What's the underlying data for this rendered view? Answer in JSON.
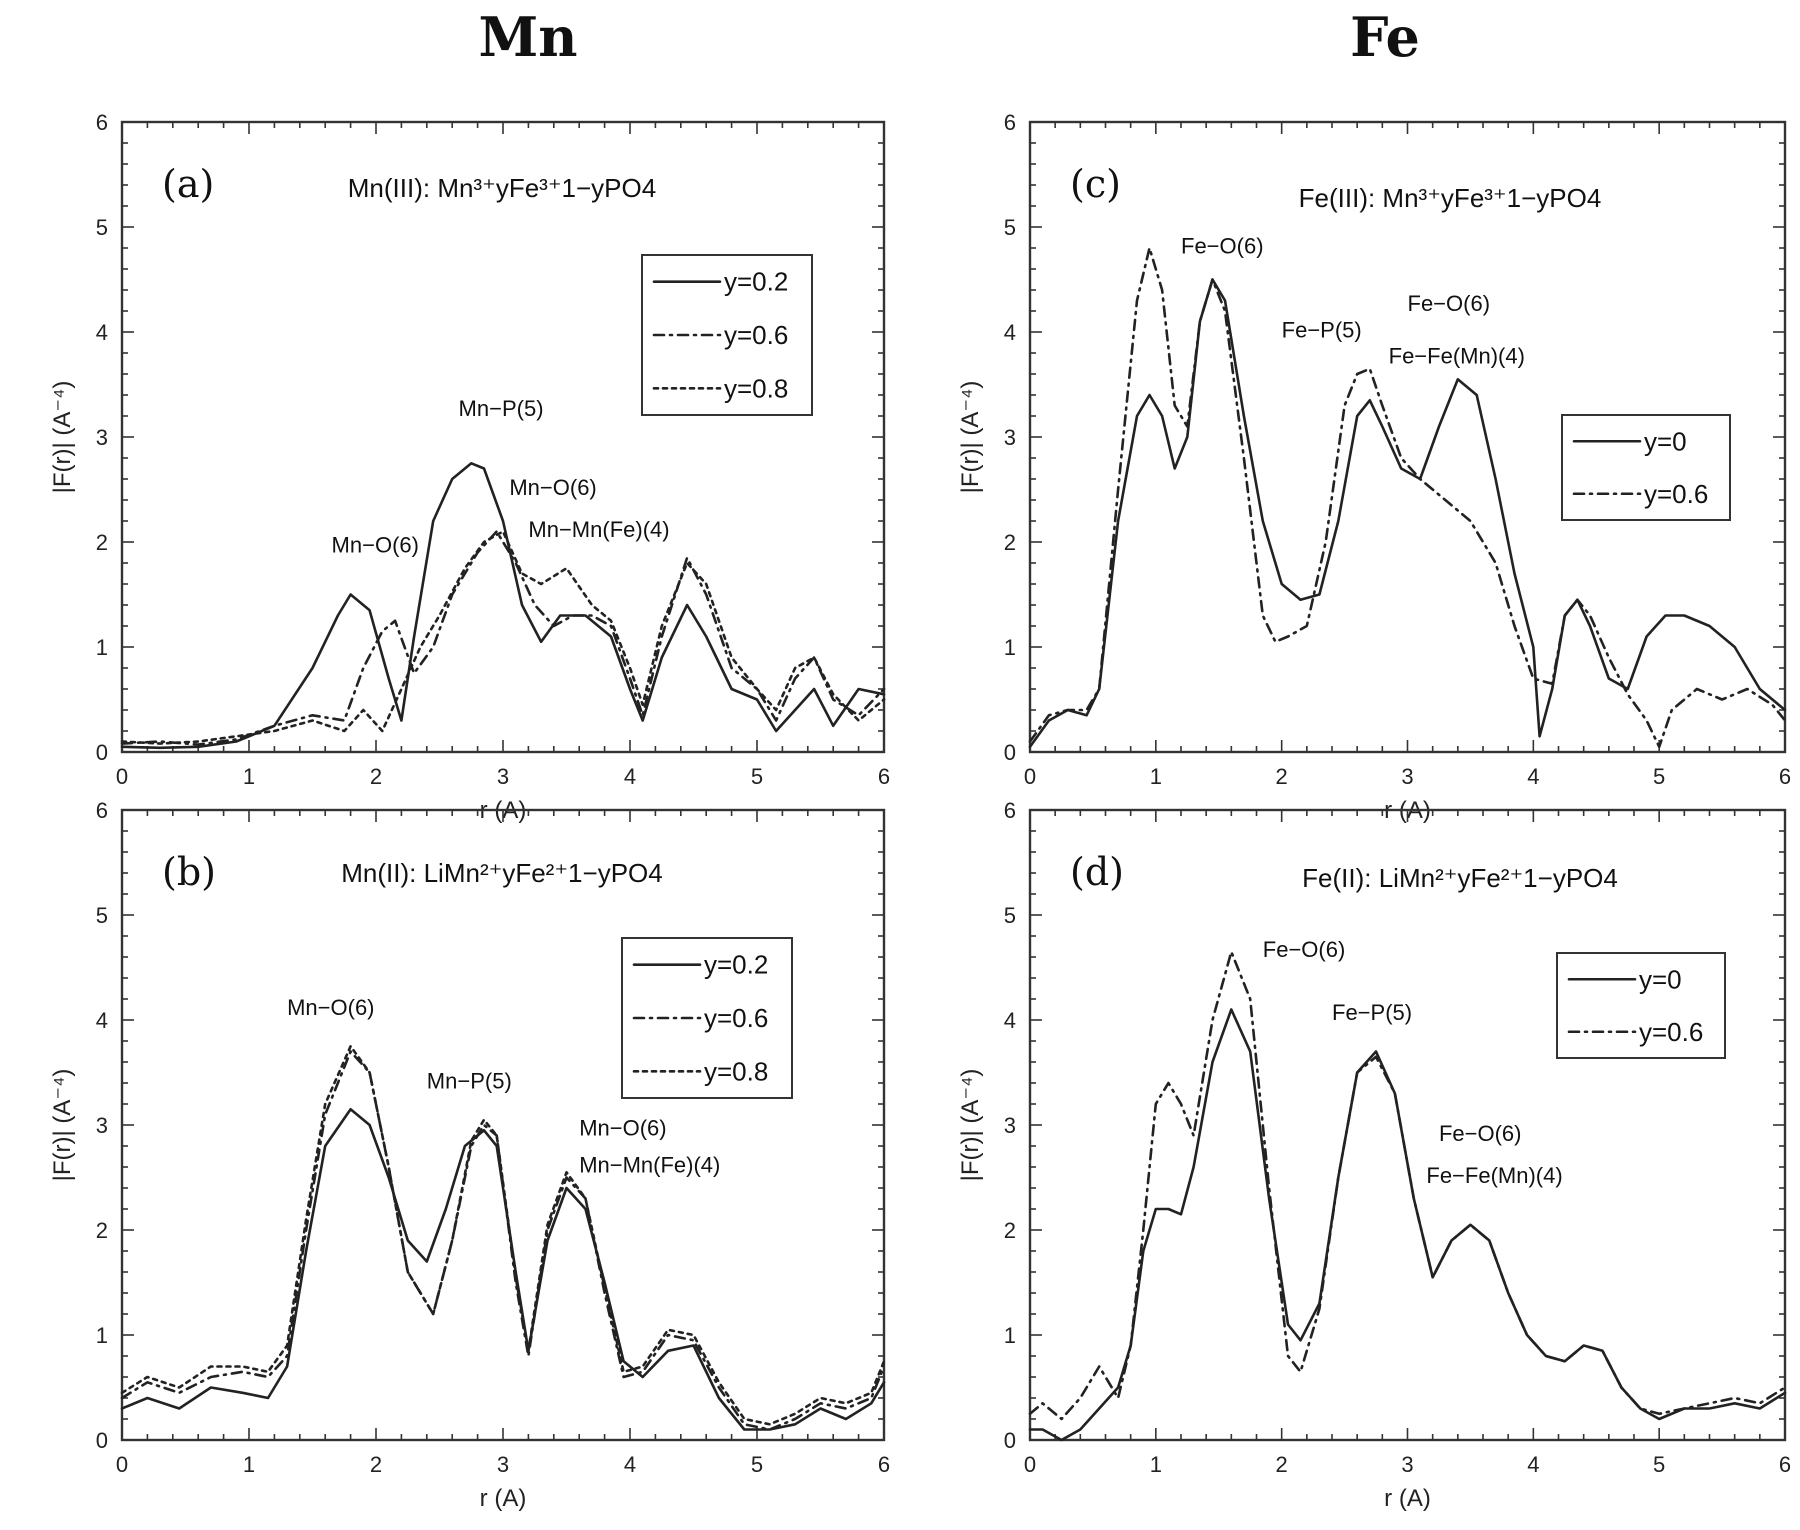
{
  "headers": {
    "left": "Mn",
    "right": "Fe"
  },
  "chart_data": [
    {
      "type": "line",
      "panel_label": "(a)",
      "title": "Mn(III): Mn³⁺yFe³⁺1−yPO4",
      "xlabel": "r (A)",
      "ylabel": "|F(r)| (A⁻⁴)",
      "xlim": [
        0,
        6
      ],
      "ylim": [
        0,
        6
      ],
      "xticks": [
        "0",
        "1",
        "2",
        "3",
        "4",
        "5",
        "6"
      ],
      "yticks": [
        "0",
        "1",
        "2",
        "3",
        "4",
        "5",
        "6"
      ],
      "legend": "top-right",
      "series": [
        {
          "name": "y=0.2",
          "dash": "solid",
          "x": [
            0,
            0.3,
            0.6,
            0.9,
            1.2,
            1.5,
            1.7,
            1.8,
            1.95,
            2.1,
            2.2,
            2.3,
            2.45,
            2.6,
            2.75,
            2.85,
            3.0,
            3.15,
            3.3,
            3.45,
            3.65,
            3.85,
            4.0,
            4.1,
            4.25,
            4.45,
            4.6,
            4.8,
            5.0,
            5.15,
            5.3,
            5.45,
            5.6,
            5.8,
            6.0
          ],
          "y": [
            0.05,
            0.04,
            0.05,
            0.1,
            0.25,
            0.8,
            1.3,
            1.5,
            1.35,
            0.7,
            0.3,
            1.1,
            2.2,
            2.6,
            2.75,
            2.7,
            2.2,
            1.4,
            1.05,
            1.3,
            1.3,
            1.1,
            0.6,
            0.3,
            0.9,
            1.4,
            1.1,
            0.6,
            0.5,
            0.2,
            0.4,
            0.6,
            0.25,
            0.6,
            0.55
          ]
        },
        {
          "name": "y=0.6",
          "dash": "10,6,2,6",
          "x": [
            0,
            0.3,
            0.6,
            0.9,
            1.2,
            1.5,
            1.75,
            1.9,
            2.05,
            2.15,
            2.3,
            2.45,
            2.6,
            2.8,
            2.95,
            3.1,
            3.25,
            3.4,
            3.55,
            3.7,
            3.85,
            4.0,
            4.1,
            4.25,
            4.45,
            4.6,
            4.8,
            5.0,
            5.15,
            5.3,
            5.45,
            5.6,
            5.8,
            6.0
          ],
          "y": [
            0.08,
            0.1,
            0.07,
            0.12,
            0.25,
            0.35,
            0.3,
            0.8,
            1.15,
            1.25,
            0.75,
            1.0,
            1.5,
            1.9,
            2.1,
            1.8,
            1.4,
            1.2,
            1.3,
            1.3,
            1.2,
            0.7,
            0.35,
            1.1,
            1.85,
            1.5,
            0.8,
            0.6,
            0.3,
            0.7,
            0.9,
            0.5,
            0.35,
            0.6
          ]
        },
        {
          "name": "y=0.8",
          "dash": "4,5",
          "x": [
            0,
            0.3,
            0.6,
            0.9,
            1.2,
            1.5,
            1.75,
            1.9,
            2.05,
            2.2,
            2.35,
            2.5,
            2.7,
            2.85,
            3.0,
            3.15,
            3.3,
            3.5,
            3.7,
            3.85,
            4.0,
            4.1,
            4.25,
            4.45,
            4.6,
            4.8,
            5.0,
            5.15,
            5.3,
            5.45,
            5.6,
            5.8,
            6.0
          ],
          "y": [
            0.1,
            0.08,
            0.1,
            0.15,
            0.2,
            0.3,
            0.2,
            0.4,
            0.2,
            0.6,
            1.0,
            1.3,
            1.75,
            2.0,
            2.1,
            1.7,
            1.6,
            1.75,
            1.4,
            1.25,
            0.8,
            0.45,
            1.2,
            1.8,
            1.6,
            0.9,
            0.6,
            0.4,
            0.8,
            0.9,
            0.55,
            0.3,
            0.5
          ]
        }
      ],
      "annotations": [
        {
          "text": "Mn−O(6)",
          "x": 1.65,
          "y": 1.9
        },
        {
          "text": "Mn−P(5)",
          "x": 2.65,
          "y": 3.2
        },
        {
          "text": "Mn−O(6)",
          "x": 3.05,
          "y": 2.45
        },
        {
          "text": "Mn−Mn(Fe)(4)",
          "x": 3.2,
          "y": 2.05
        }
      ]
    },
    {
      "type": "line",
      "panel_label": "(b)",
      "title": "Mn(II): LiMn²⁺yFe²⁺1−yPO4",
      "xlabel": "r (A)",
      "ylabel": "|F(r)| (A⁻⁴)",
      "xlim": [
        0,
        6
      ],
      "ylim": [
        0,
        6
      ],
      "xticks": [
        "0",
        "1",
        "2",
        "3",
        "4",
        "5",
        "6"
      ],
      "yticks": [
        "0",
        "1",
        "2",
        "3",
        "4",
        "5",
        "6"
      ],
      "legend": "top-right",
      "series": [
        {
          "name": "y=0.2",
          "dash": "solid",
          "x": [
            0,
            0.2,
            0.45,
            0.7,
            0.95,
            1.15,
            1.3,
            1.45,
            1.6,
            1.8,
            1.95,
            2.1,
            2.25,
            2.4,
            2.55,
            2.7,
            2.85,
            2.95,
            3.1,
            3.2,
            3.35,
            3.5,
            3.65,
            3.8,
            3.95,
            4.1,
            4.3,
            4.5,
            4.7,
            4.9,
            5.1,
            5.3,
            5.5,
            5.7,
            5.9,
            6.0
          ],
          "y": [
            0.3,
            0.4,
            0.3,
            0.5,
            0.45,
            0.4,
            0.7,
            1.8,
            2.8,
            3.15,
            3.0,
            2.5,
            1.9,
            1.7,
            2.2,
            2.8,
            2.95,
            2.8,
            1.6,
            0.85,
            1.9,
            2.4,
            2.2,
            1.5,
            0.75,
            0.6,
            0.85,
            0.9,
            0.4,
            0.1,
            0.1,
            0.15,
            0.3,
            0.2,
            0.35,
            0.55
          ]
        },
        {
          "name": "y=0.6",
          "dash": "10,6,2,6",
          "x": [
            0,
            0.2,
            0.45,
            0.7,
            0.95,
            1.15,
            1.3,
            1.45,
            1.6,
            1.8,
            1.95,
            2.1,
            2.25,
            2.45,
            2.6,
            2.75,
            2.85,
            2.95,
            3.1,
            3.2,
            3.35,
            3.5,
            3.65,
            3.8,
            3.95,
            4.1,
            4.3,
            4.5,
            4.7,
            4.9,
            5.1,
            5.3,
            5.5,
            5.7,
            5.9,
            6.0
          ],
          "y": [
            0.4,
            0.55,
            0.45,
            0.6,
            0.65,
            0.6,
            0.8,
            2.0,
            3.1,
            3.7,
            3.5,
            2.6,
            1.6,
            1.2,
            1.9,
            2.8,
            3.0,
            2.9,
            1.5,
            0.8,
            2.0,
            2.5,
            2.3,
            1.4,
            0.6,
            0.65,
            1.0,
            0.95,
            0.5,
            0.15,
            0.1,
            0.2,
            0.35,
            0.3,
            0.4,
            0.7
          ]
        },
        {
          "name": "y=0.8",
          "dash": "4,5",
          "x": [
            0,
            0.2,
            0.45,
            0.7,
            0.95,
            1.15,
            1.3,
            1.45,
            1.6,
            1.8,
            1.95,
            2.1,
            2.25,
            2.45,
            2.6,
            2.75,
            2.85,
            2.95,
            3.1,
            3.2,
            3.35,
            3.5,
            3.65,
            3.8,
            3.95,
            4.1,
            4.3,
            4.5,
            4.7,
            4.9,
            5.1,
            5.3,
            5.5,
            5.7,
            5.9,
            6.0
          ],
          "y": [
            0.45,
            0.6,
            0.5,
            0.7,
            0.7,
            0.65,
            0.9,
            2.1,
            3.2,
            3.75,
            3.5,
            2.6,
            1.6,
            1.2,
            1.9,
            2.85,
            3.05,
            2.9,
            1.55,
            0.85,
            2.05,
            2.55,
            2.3,
            1.45,
            0.65,
            0.7,
            1.05,
            1.0,
            0.55,
            0.2,
            0.15,
            0.25,
            0.4,
            0.35,
            0.45,
            0.75
          ]
        }
      ],
      "annotations": [
        {
          "text": "Mn−O(6)",
          "x": 1.3,
          "y": 4.05
        },
        {
          "text": "Mn−P(5)",
          "x": 2.4,
          "y": 3.35
        },
        {
          "text": "Mn−O(6)",
          "x": 3.6,
          "y": 2.9
        },
        {
          "text": "Mn−Mn(Fe)(4)",
          "x": 3.6,
          "y": 2.55
        }
      ]
    },
    {
      "type": "line",
      "panel_label": "(c)",
      "title": "Fe(III): Mn³⁺yFe³⁺1−yPO4",
      "xlabel": "r (A)",
      "ylabel": "|F(r)| (A⁻⁴)",
      "xlim": [
        0,
        6
      ],
      "ylim": [
        0,
        6
      ],
      "xticks": [
        "0",
        "1",
        "2",
        "3",
        "4",
        "5",
        "6"
      ],
      "yticks": [
        "0",
        "1",
        "2",
        "3",
        "4",
        "5",
        "6"
      ],
      "legend": "middle-right",
      "series": [
        {
          "name": "y=0",
          "dash": "solid",
          "x": [
            0,
            0.15,
            0.3,
            0.45,
            0.55,
            0.7,
            0.85,
            0.95,
            1.05,
            1.15,
            1.25,
            1.35,
            1.45,
            1.55,
            1.7,
            1.85,
            2.0,
            2.15,
            2.3,
            2.45,
            2.6,
            2.7,
            2.8,
            2.95,
            3.1,
            3.25,
            3.4,
            3.55,
            3.7,
            3.85,
            4.0,
            4.05,
            4.15,
            4.25,
            4.35,
            4.45,
            4.6,
            4.75,
            4.9,
            5.05,
            5.2,
            5.4,
            5.6,
            5.8,
            6.0
          ],
          "y": [
            0.05,
            0.3,
            0.4,
            0.35,
            0.6,
            2.2,
            3.2,
            3.4,
            3.2,
            2.7,
            3.0,
            4.1,
            4.5,
            4.3,
            3.2,
            2.2,
            1.6,
            1.45,
            1.5,
            2.2,
            3.2,
            3.35,
            3.1,
            2.7,
            2.6,
            3.1,
            3.55,
            3.4,
            2.6,
            1.7,
            1.0,
            0.15,
            0.6,
            1.3,
            1.45,
            1.2,
            0.7,
            0.6,
            1.1,
            1.3,
            1.3,
            1.2,
            1.0,
            0.6,
            0.4
          ]
        },
        {
          "name": "y=0.6",
          "dash": "10,6,2,6",
          "x": [
            0,
            0.15,
            0.3,
            0.45,
            0.55,
            0.7,
            0.85,
            0.95,
            1.05,
            1.15,
            1.25,
            1.35,
            1.45,
            1.55,
            1.7,
            1.85,
            1.95,
            2.05,
            2.2,
            2.35,
            2.5,
            2.6,
            2.7,
            2.8,
            2.95,
            3.1,
            3.3,
            3.5,
            3.7,
            3.85,
            4.0,
            4.15,
            4.25,
            4.35,
            4.45,
            4.6,
            4.75,
            4.9,
            5.0,
            5.1,
            5.3,
            5.5,
            5.7,
            5.9,
            6.0
          ],
          "y": [
            0.1,
            0.35,
            0.4,
            0.4,
            0.6,
            2.5,
            4.3,
            4.8,
            4.4,
            3.3,
            3.1,
            4.1,
            4.5,
            4.2,
            2.8,
            1.3,
            1.05,
            1.1,
            1.2,
            2.0,
            3.3,
            3.6,
            3.65,
            3.3,
            2.8,
            2.6,
            2.4,
            2.2,
            1.8,
            1.2,
            0.7,
            0.65,
            1.3,
            1.45,
            1.3,
            0.9,
            0.55,
            0.3,
            0.05,
            0.4,
            0.6,
            0.5,
            0.6,
            0.45,
            0.3
          ]
        }
      ],
      "annotations": [
        {
          "text": "Fe−O(6)",
          "x": 1.2,
          "y": 4.75
        },
        {
          "text": "Fe−P(5)",
          "x": 2.0,
          "y": 3.95
        },
        {
          "text": "Fe−O(6)",
          "x": 3.0,
          "y": 4.2
        },
        {
          "text": "Fe−Fe(Mn)(4)",
          "x": 2.85,
          "y": 3.7
        }
      ]
    },
    {
      "type": "line",
      "panel_label": "(d)",
      "title": "Fe(II): LiMn²⁺yFe²⁺1−yPO4",
      "xlabel": "r (A)",
      "ylabel": "|F(r)| (A⁻⁴)",
      "xlim": [
        0,
        6
      ],
      "ylim": [
        0,
        6
      ],
      "xticks": [
        "0",
        "1",
        "2",
        "3",
        "4",
        "5",
        "6"
      ],
      "yticks": [
        "0",
        "1",
        "2",
        "3",
        "4",
        "5",
        "6"
      ],
      "legend": "top-right",
      "series": [
        {
          "name": "y=0",
          "dash": "solid",
          "x": [
            0,
            0.1,
            0.25,
            0.4,
            0.55,
            0.7,
            0.8,
            0.9,
            1.0,
            1.1,
            1.2,
            1.3,
            1.45,
            1.6,
            1.75,
            1.9,
            2.05,
            2.15,
            2.3,
            2.45,
            2.6,
            2.75,
            2.9,
            3.05,
            3.2,
            3.35,
            3.5,
            3.65,
            3.8,
            3.95,
            4.1,
            4.25,
            4.4,
            4.55,
            4.7,
            4.85,
            5.0,
            5.2,
            5.4,
            5.6,
            5.8,
            6.0
          ],
          "y": [
            0.1,
            0.1,
            0.0,
            0.1,
            0.3,
            0.5,
            0.9,
            1.8,
            2.2,
            2.2,
            2.15,
            2.6,
            3.6,
            4.1,
            3.7,
            2.3,
            1.1,
            0.95,
            1.3,
            2.5,
            3.5,
            3.7,
            3.3,
            2.3,
            1.55,
            1.9,
            2.05,
            1.9,
            1.4,
            1.0,
            0.8,
            0.75,
            0.9,
            0.85,
            0.5,
            0.3,
            0.2,
            0.3,
            0.3,
            0.35,
            0.3,
            0.45
          ]
        },
        {
          "name": "y=0.6",
          "dash": "10,6,2,6",
          "x": [
            0,
            0.1,
            0.25,
            0.4,
            0.55,
            0.7,
            0.8,
            0.9,
            1.0,
            1.1,
            1.2,
            1.3,
            1.45,
            1.6,
            1.75,
            1.9,
            2.05,
            2.15,
            2.3,
            2.45,
            2.6,
            2.75,
            2.9,
            3.05,
            3.2,
            3.35,
            3.5,
            3.65,
            3.8,
            3.95,
            4.1,
            4.25,
            4.4,
            4.55,
            4.7,
            4.85,
            5.0,
            5.2,
            5.4,
            5.6,
            5.8,
            6.0
          ],
          "y": [
            0.25,
            0.35,
            0.2,
            0.4,
            0.7,
            0.4,
            0.9,
            2.0,
            3.2,
            3.4,
            3.2,
            2.9,
            4.0,
            4.65,
            4.2,
            2.4,
            0.8,
            0.65,
            1.25,
            2.5,
            3.5,
            3.65,
            3.3,
            2.3,
            1.55,
            1.9,
            2.05,
            1.9,
            1.4,
            1.0,
            0.8,
            0.75,
            0.9,
            0.85,
            0.5,
            0.3,
            0.25,
            0.3,
            0.35,
            0.4,
            0.35,
            0.5
          ]
        }
      ],
      "annotations": [
        {
          "text": "Fe−O(6)",
          "x": 1.85,
          "y": 4.6
        },
        {
          "text": "Fe−P(5)",
          "x": 2.4,
          "y": 4.0
        },
        {
          "text": "Fe−O(6)",
          "x": 3.25,
          "y": 2.85
        },
        {
          "text": "Fe−Fe(Mn)(4)",
          "x": 3.15,
          "y": 2.45
        }
      ]
    }
  ]
}
